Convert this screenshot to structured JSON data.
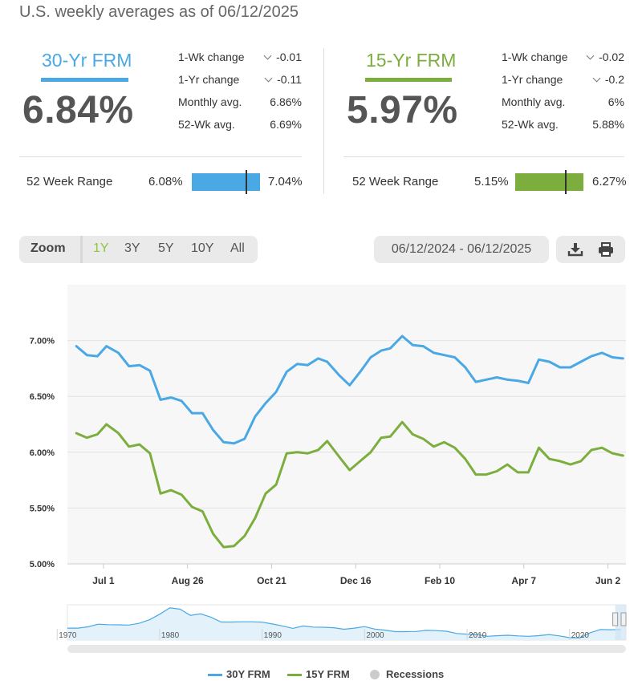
{
  "subtitle": "U.S. weekly averages as of 06/12/2025",
  "panels": [
    {
      "title": "30-Yr FRM",
      "rate": "6.84%",
      "color": "#4aa8e4",
      "stats": [
        {
          "label": "1-Wk change",
          "value": "-0.01",
          "arrow": "down"
        },
        {
          "label": "1-Yr change",
          "value": "-0.11",
          "arrow": "down"
        },
        {
          "label": "Monthly avg.",
          "value": "6.86%"
        },
        {
          "label": "52-Wk avg.",
          "value": "6.69%"
        }
      ],
      "range": {
        "label": "52 Week Range",
        "low": "6.08%",
        "high": "7.04%",
        "low_num": 6.08,
        "high_num": 7.04,
        "current": 6.84
      }
    },
    {
      "title": "15-Yr FRM",
      "rate": "5.97%",
      "color": "#7cae3e",
      "stats": [
        {
          "label": "1-Wk change",
          "value": "-0.02",
          "arrow": "down"
        },
        {
          "label": "1-Yr change",
          "value": "-0.2",
          "arrow": "down"
        },
        {
          "label": "Monthly avg.",
          "value": "6%"
        },
        {
          "label": "52-Wk avg.",
          "value": "5.88%"
        }
      ],
      "range": {
        "label": "52 Week Range",
        "low": "5.15%",
        "high": "6.27%",
        "low_num": 5.15,
        "high_num": 6.27,
        "current": 5.97
      }
    }
  ],
  "toolbar": {
    "zoom_label": "Zoom",
    "zoom_options": [
      "1Y",
      "3Y",
      "5Y",
      "10Y",
      "All"
    ],
    "zoom_active": "1Y",
    "date_range": "06/12/2024 - 06/12/2025",
    "download_icon": "download-icon",
    "print_icon": "printer-icon"
  },
  "chart_data": {
    "type": "line",
    "x": [
      "2024-06-13",
      "2024-06-20",
      "2024-06-27",
      "2024-07-03",
      "2024-07-11",
      "2024-07-18",
      "2024-07-25",
      "2024-08-01",
      "2024-08-08",
      "2024-08-15",
      "2024-08-22",
      "2024-08-29",
      "2024-09-05",
      "2024-09-12",
      "2024-09-19",
      "2024-09-26",
      "2024-10-03",
      "2024-10-10",
      "2024-10-17",
      "2024-10-24",
      "2024-10-31",
      "2024-11-07",
      "2024-11-14",
      "2024-11-21",
      "2024-11-27",
      "2024-12-05",
      "2024-12-12",
      "2024-12-19",
      "2024-12-26",
      "2025-01-02",
      "2025-01-08",
      "2025-01-16",
      "2025-01-23",
      "2025-01-30",
      "2025-02-06",
      "2025-02-13",
      "2025-02-20",
      "2025-02-27",
      "2025-03-06",
      "2025-03-13",
      "2025-03-20",
      "2025-03-27",
      "2025-04-03",
      "2025-04-10",
      "2025-04-17",
      "2025-04-24",
      "2025-05-01",
      "2025-05-08",
      "2025-05-15",
      "2025-05-22",
      "2025-05-29",
      "2025-06-05",
      "2025-06-12"
    ],
    "series": [
      {
        "name": "30Y FRM",
        "color": "#4aa8e4",
        "values": [
          6.95,
          6.87,
          6.86,
          6.95,
          6.89,
          6.77,
          6.78,
          6.73,
          6.47,
          6.49,
          6.46,
          6.35,
          6.35,
          6.2,
          6.09,
          6.08,
          6.12,
          6.32,
          6.44,
          6.54,
          6.72,
          6.79,
          6.78,
          6.84,
          6.81,
          6.69,
          6.6,
          6.72,
          6.85,
          6.91,
          6.93,
          7.04,
          6.96,
          6.95,
          6.89,
          6.87,
          6.85,
          6.76,
          6.63,
          6.65,
          6.67,
          6.65,
          6.64,
          6.62,
          6.83,
          6.81,
          6.76,
          6.76,
          6.81,
          6.86,
          6.89,
          6.85,
          6.84
        ]
      },
      {
        "name": "15Y FRM",
        "color": "#7cae3e",
        "values": [
          6.17,
          6.13,
          6.16,
          6.25,
          6.17,
          6.05,
          6.07,
          5.99,
          5.63,
          5.66,
          5.62,
          5.51,
          5.47,
          5.27,
          5.15,
          5.16,
          5.25,
          5.41,
          5.63,
          5.71,
          5.99,
          6.0,
          5.99,
          6.02,
          6.1,
          5.96,
          5.84,
          5.92,
          6.0,
          6.13,
          6.14,
          6.27,
          6.16,
          6.12,
          6.05,
          6.09,
          6.04,
          5.94,
          5.8,
          5.8,
          5.83,
          5.89,
          5.82,
          5.82,
          6.04,
          5.94,
          5.92,
          5.89,
          5.92,
          6.02,
          6.04,
          5.99,
          5.97
        ]
      }
    ],
    "xticks": [
      {
        "label": "Jul 1",
        "date": "2024-07-01"
      },
      {
        "label": "Aug 26",
        "date": "2024-08-26"
      },
      {
        "label": "Oct 21",
        "date": "2024-10-21"
      },
      {
        "label": "Dec 16",
        "date": "2024-12-16"
      },
      {
        "label": "Feb 10",
        "date": "2025-02-10"
      },
      {
        "label": "Apr 7",
        "date": "2025-04-07"
      },
      {
        "label": "Jun 2",
        "date": "2025-06-02"
      }
    ],
    "yticks": [
      "7.00%",
      "6.50%",
      "6.00%",
      "5.50%",
      "5.00%"
    ],
    "ytick_values": [
      7.0,
      6.5,
      6.0,
      5.5,
      5.0
    ],
    "ylim": [
      5.0,
      7.5
    ],
    "xlim": [
      "2024-06-07",
      "2025-06-14"
    ],
    "grid": true,
    "legend_position": "bottom",
    "legend": [
      "30Y FRM",
      "15Y FRM",
      "Recessions"
    ],
    "navigator": {
      "labels": [
        "1970",
        "1980",
        "1990",
        "2000",
        "2010",
        "2020"
      ],
      "label_years": [
        1970,
        1980,
        1990,
        2000,
        2010,
        2020
      ],
      "year_range": [
        1971,
        2025.5
      ],
      "points": [
        [
          1971,
          7.4
        ],
        [
          1972,
          7.4
        ],
        [
          1973,
          8.0
        ],
        [
          1974,
          9.2
        ],
        [
          1975,
          9.0
        ],
        [
          1976,
          8.9
        ],
        [
          1977,
          8.8
        ],
        [
          1978,
          9.6
        ],
        [
          1979,
          11.2
        ],
        [
          1980,
          13.7
        ],
        [
          1981,
          16.6
        ],
        [
          1982,
          16.0
        ],
        [
          1983,
          13.2
        ],
        [
          1984,
          13.9
        ],
        [
          1985,
          12.4
        ],
        [
          1986,
          10.2
        ],
        [
          1987,
          10.2
        ],
        [
          1988,
          10.3
        ],
        [
          1989,
          10.3
        ],
        [
          1990,
          10.1
        ],
        [
          1991,
          9.3
        ],
        [
          1992,
          8.4
        ],
        [
          1993,
          7.3
        ],
        [
          1994,
          8.4
        ],
        [
          1995,
          7.9
        ],
        [
          1996,
          7.8
        ],
        [
          1997,
          7.6
        ],
        [
          1998,
          6.9
        ],
        [
          1999,
          7.4
        ],
        [
          2000,
          8.1
        ],
        [
          2001,
          7.0
        ],
        [
          2002,
          6.5
        ],
        [
          2003,
          5.8
        ],
        [
          2004,
          5.8
        ],
        [
          2005,
          5.9
        ],
        [
          2006,
          6.4
        ],
        [
          2007,
          6.3
        ],
        [
          2008,
          6.0
        ],
        [
          2009,
          5.0
        ],
        [
          2010,
          4.7
        ],
        [
          2011,
          4.5
        ],
        [
          2012,
          3.7
        ],
        [
          2013,
          4.0
        ],
        [
          2014,
          4.2
        ],
        [
          2015,
          3.9
        ],
        [
          2016,
          3.7
        ],
        [
          2017,
          4.0
        ],
        [
          2018,
          4.5
        ],
        [
          2019,
          3.9
        ],
        [
          2020,
          3.1
        ],
        [
          2021,
          3.0
        ],
        [
          2022,
          5.3
        ],
        [
          2023,
          6.8
        ],
        [
          2024,
          6.7
        ],
        [
          2025,
          6.8
        ]
      ]
    }
  }
}
